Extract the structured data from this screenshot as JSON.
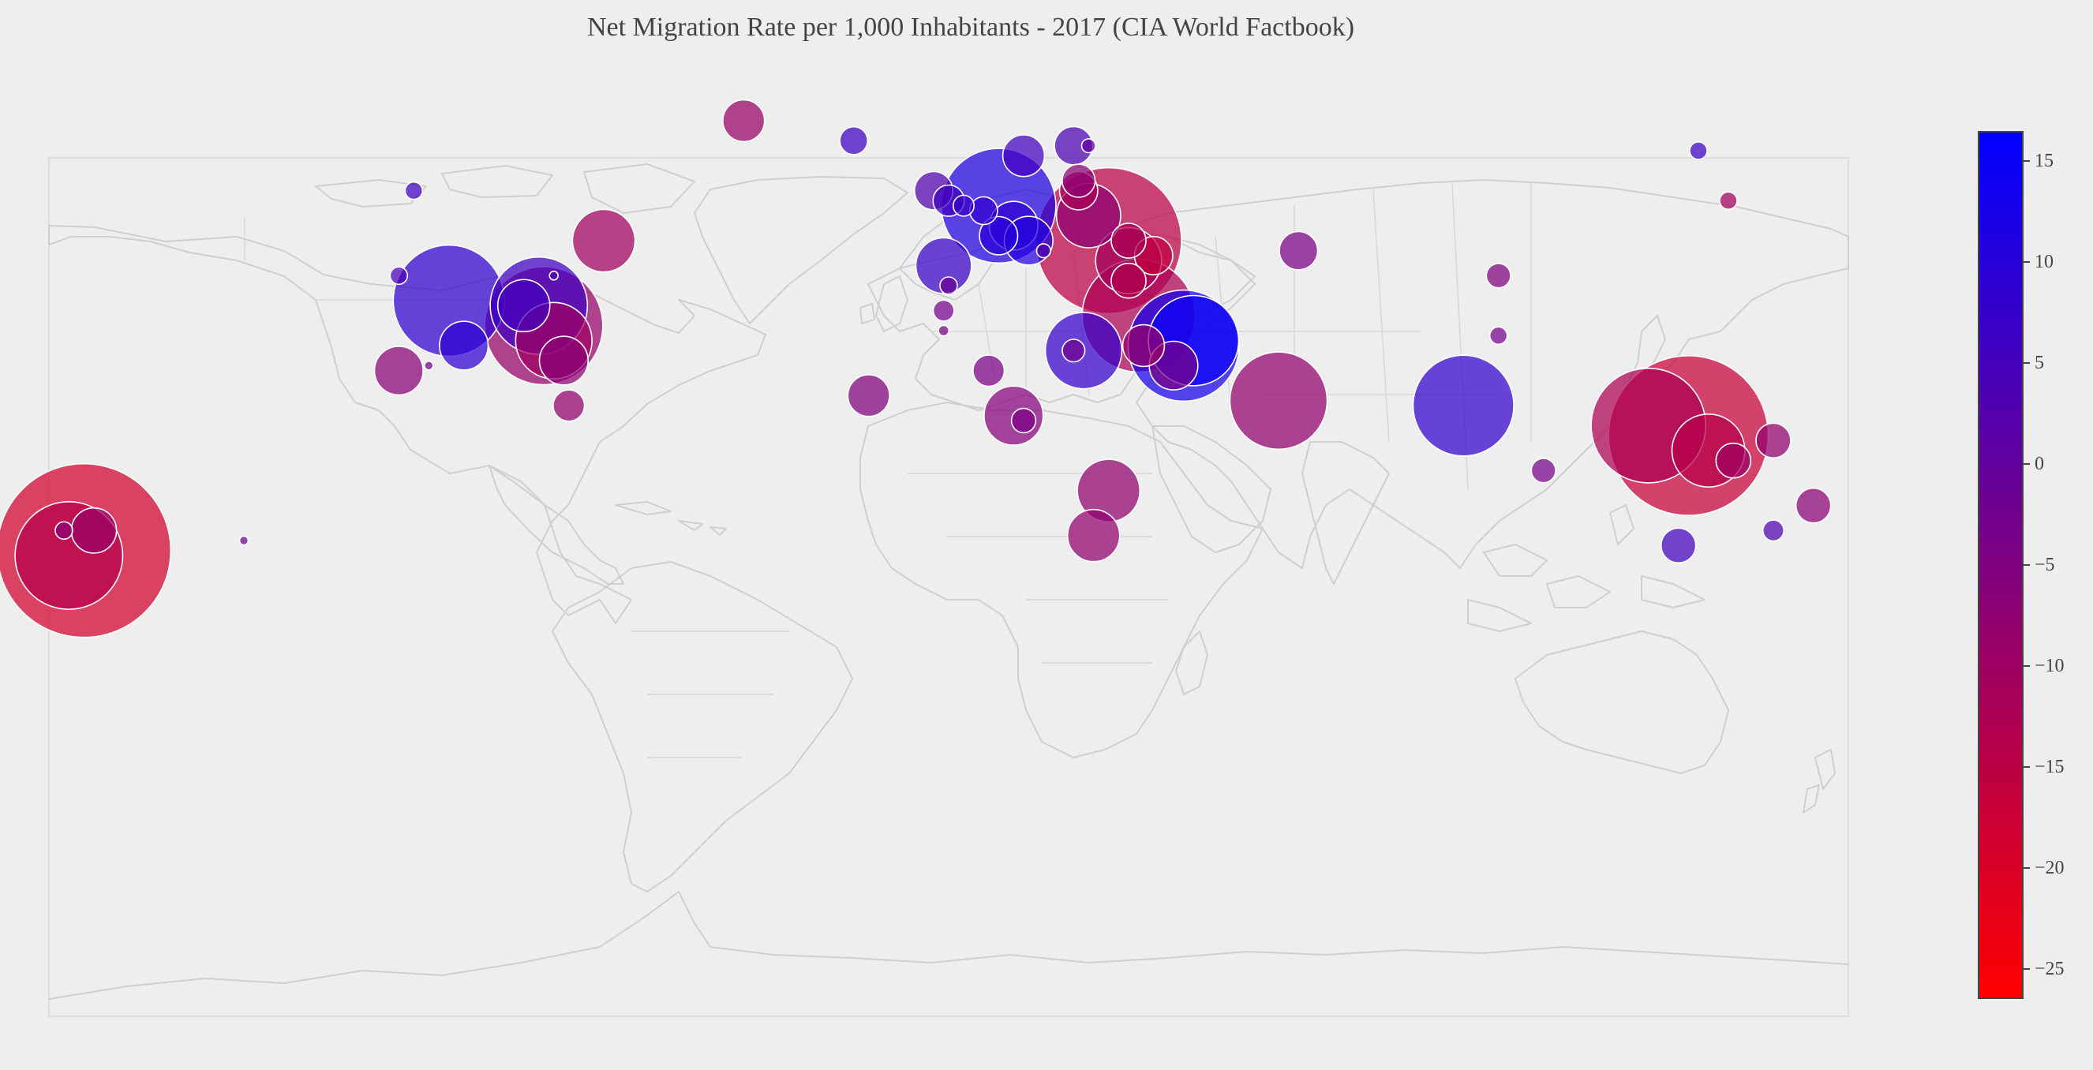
{
  "chart_data": {
    "type": "bubble-map",
    "title": "Net Migration Rate per 1,000 Inhabitants - 2017 (CIA World Factbook)",
    "colorbar": {
      "min": -26.5,
      "max": 16.5,
      "ticks": [
        15,
        10,
        5,
        0,
        -5,
        -10,
        -15,
        -20,
        -25
      ],
      "tick_labels": [
        "15",
        "10",
        "5",
        "0",
        "−5",
        "−10",
        "−15",
        "−20",
        "−25"
      ],
      "color_low": "#ff0000",
      "color_high": "#0000ff"
    },
    "colors": {
      "background": "#eeeeee",
      "land_outline": "#cfcfcf",
      "bubble_stroke": "#ffffff"
    },
    "points": [
      {
        "lon": 156,
        "lat": 53,
        "value": -11.2,
        "size": 1.0
      },
      {
        "lon": 150,
        "lat": 63,
        "value": 6.2,
        "size": 1.0
      },
      {
        "lon": -107,
        "lat": 55,
        "value": 6.0,
        "size": 1.0
      },
      {
        "lon": -41,
        "lat": 69,
        "value": -9.2,
        "size": 2.4
      },
      {
        "lon": -69,
        "lat": 45,
        "value": -10.3,
        "size": 3.6
      },
      {
        "lon": -110,
        "lat": 38,
        "value": 4.0,
        "size": 1.0
      },
      {
        "lon": -19,
        "lat": 65,
        "value": 6.2,
        "size": 1.6
      },
      {
        "lon": -79,
        "lat": 38,
        "value": 2.2,
        "size": 0.5
      },
      {
        "lon": -104,
        "lat": 20,
        "value": -2.0,
        "size": 0.5
      },
      {
        "lon": 15,
        "lat": 62,
        "value": 5.6,
        "size": 2.4
      },
      {
        "lon": 25,
        "lat": 64,
        "value": 3.8,
        "size": 2.2
      },
      {
        "lon": 28,
        "lat": 64,
        "value": 0.5,
        "size": 0.8
      },
      {
        "lon": 26,
        "lat": 57,
        "value": -7.0,
        "size": 1.9
      },
      {
        "lon": 26,
        "lat": 55,
        "value": -12.0,
        "size": 2.2
      },
      {
        "lon": -3,
        "lat": 55,
        "value": 3.0,
        "size": 2.2
      },
      {
        "lon": 0,
        "lat": 53,
        "value": 5.5,
        "size": 1.8
      },
      {
        "lon": 3,
        "lat": 52,
        "value": 7.0,
        "size": 1.2
      },
      {
        "lon": 10,
        "lat": 52,
        "value": 11.5,
        "size": 6.6
      },
      {
        "lon": 7,
        "lat": 51,
        "value": 8.0,
        "size": 1.6
      },
      {
        "lon": 10,
        "lat": 46,
        "value": 10.0,
        "size": 2.2
      },
      {
        "lon": 13,
        "lat": 48,
        "value": 8.5,
        "size": 2.8
      },
      {
        "lon": 16,
        "lat": 45,
        "value": 10.6,
        "size": 2.8
      },
      {
        "lon": 19,
        "lat": 43,
        "value": 3.0,
        "size": 0.8
      },
      {
        "lon": -1,
        "lat": 40,
        "value": 7.0,
        "size": 3.2
      },
      {
        "lon": 0,
        "lat": 36,
        "value": -1.0,
        "size": 1.0
      },
      {
        "lon": 28,
        "lat": 50,
        "value": -7.5,
        "size": 3.7
      },
      {
        "lon": 32,
        "lat": 45,
        "value": -15.0,
        "size": 8.4
      },
      {
        "lon": 36,
        "lat": 45,
        "value": -12.0,
        "size": 2.0
      },
      {
        "lon": 36,
        "lat": 41,
        "value": -11.0,
        "size": 3.8
      },
      {
        "lon": 41,
        "lat": 42,
        "value": -16.0,
        "size": 2.2
      },
      {
        "lon": 36,
        "lat": 37,
        "value": -13.5,
        "size": 2.0
      },
      {
        "lon": 38,
        "lat": 30,
        "value": -12.5,
        "size": 6.5
      },
      {
        "lon": 39,
        "lat": 24,
        "value": -9.0,
        "size": 2.4
      },
      {
        "lon": 47,
        "lat": 24,
        "value": 13.0,
        "size": 6.4
      },
      {
        "lon": 49,
        "lat": 25,
        "value": 15.0,
        "size": 5.2
      },
      {
        "lon": 45,
        "lat": 20,
        "value": -4.0,
        "size": 2.8
      },
      {
        "lon": 66,
        "lat": 13,
        "value": -8.0,
        "size": 5.6
      },
      {
        "lon": 70,
        "lat": 43,
        "value": -4.0,
        "size": 2.2
      },
      {
        "lon": 27,
        "lat": 23,
        "value": 7.5,
        "size": 4.4
      },
      {
        "lon": 13,
        "lat": 10,
        "value": -6.0,
        "size": 3.4
      },
      {
        "lon": 15,
        "lat": 9,
        "value": -4.0,
        "size": 1.4
      },
      {
        "lon": 25,
        "lat": 23,
        "value": -2.0,
        "size": 1.3
      },
      {
        "lon": 32,
        "lat": -5,
        "value": -8.0,
        "size": 3.6
      },
      {
        "lon": 29,
        "lat": -14,
        "value": -8.0,
        "size": 3.0
      },
      {
        "lon": -16,
        "lat": 14,
        "value": -5.0,
        "size": 2.4
      },
      {
        "lon": 8,
        "lat": 19,
        "value": -4.0,
        "size": 1.8
      },
      {
        "lon": -1,
        "lat": 31,
        "value": -3.0,
        "size": 1.2
      },
      {
        "lon": -1,
        "lat": 27,
        "value": -4.0,
        "size": 0.6
      },
      {
        "lon": 103,
        "lat": 12,
        "value": 8.0,
        "size": 5.8
      },
      {
        "lon": 140,
        "lat": 8,
        "value": -12.5,
        "size": 6.6
      },
      {
        "lon": 148,
        "lat": 6,
        "value": -17.0,
        "size": 9.2
      },
      {
        "lon": 152,
        "lat": 3,
        "value": -14.0,
        "size": 4.2
      },
      {
        "lon": 157,
        "lat": 1,
        "value": -10.0,
        "size": 2.0
      },
      {
        "lon": 165,
        "lat": 5,
        "value": -8.0,
        "size": 2.0
      },
      {
        "lon": 173,
        "lat": -8,
        "value": -7.0,
        "size": 2.0
      },
      {
        "lon": 146,
        "lat": -16,
        "value": 5.5,
        "size": 2.0
      },
      {
        "lon": 165,
        "lat": -13,
        "value": 3.0,
        "size": 1.2
      },
      {
        "lon": 119,
        "lat": -1,
        "value": -3.0,
        "size": 1.4
      },
      {
        "lon": 110,
        "lat": 38,
        "value": -5.0,
        "size": 1.4
      },
      {
        "lon": 110,
        "lat": 26,
        "value": -3.0,
        "size": 1.0
      },
      {
        "lon": -100,
        "lat": 33,
        "value": 8.5,
        "size": 6.4
      },
      {
        "lon": -97,
        "lat": 24,
        "value": 9.0,
        "size": 2.8
      },
      {
        "lon": -85,
        "lat": 32,
        "value": 5.0,
        "size": 3.0
      },
      {
        "lon": -81,
        "lat": 28,
        "value": -9.0,
        "size": 6.8
      },
      {
        "lon": -82,
        "lat": 32,
        "value": 6.0,
        "size": 5.6
      },
      {
        "lon": -79,
        "lat": 25,
        "value": -10.0,
        "size": 4.4
      },
      {
        "lon": -77,
        "lat": 21,
        "value": -7.0,
        "size": 2.8
      },
      {
        "lon": -76,
        "lat": 12,
        "value": -8.0,
        "size": 1.8
      },
      {
        "lon": -110,
        "lat": 19,
        "value": -7.0,
        "size": 2.8
      },
      {
        "lon": -173,
        "lat": -17,
        "value": -19.0,
        "size": 10.0
      },
      {
        "lon": -176,
        "lat": -18,
        "value": -14.0,
        "size": 6.2
      },
      {
        "lon": -171,
        "lat": -13,
        "value": -9.0,
        "size": 2.6
      },
      {
        "lon": -177,
        "lat": -13,
        "value": -7.0,
        "size": 1.0
      },
      {
        "lon": -141,
        "lat": -15,
        "value": -2.0,
        "size": 0.5
      }
    ]
  }
}
